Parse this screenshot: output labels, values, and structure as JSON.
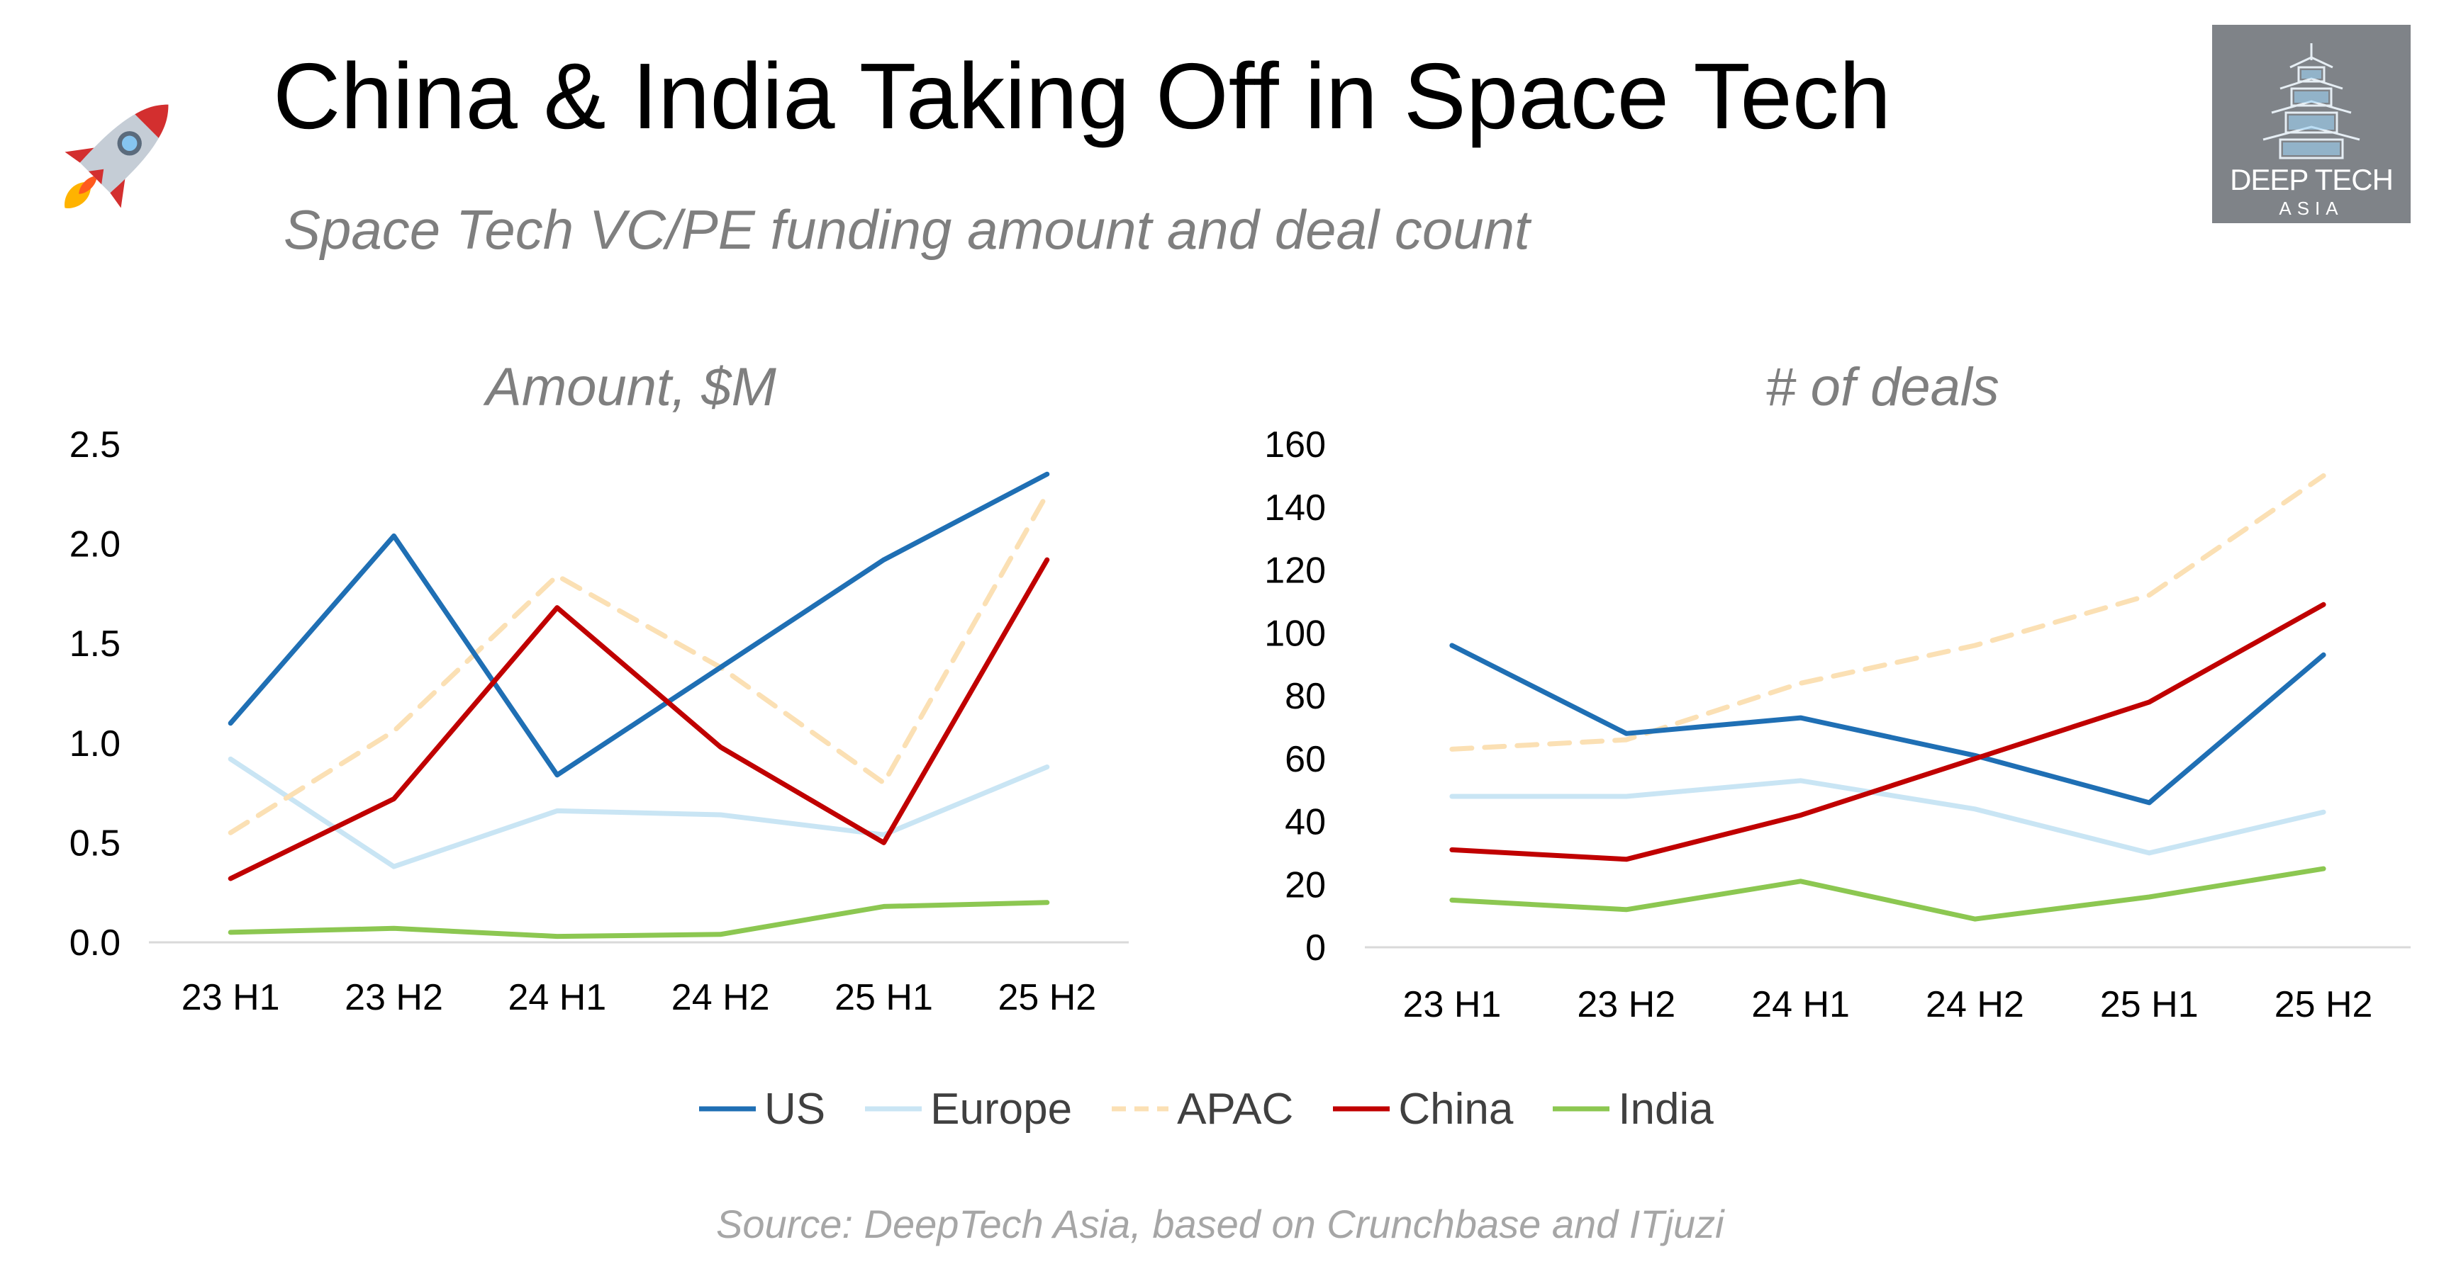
{
  "header": {
    "title": "China & India Taking Off in Space Tech",
    "subtitle": "Space Tech VC/PE funding amount and deal count"
  },
  "logo": {
    "line1": "DEEP TECH",
    "line2": "ASIA"
  },
  "source": "Source: DeepTech Asia, based on Crunchbase and ITjuzi",
  "series_styles": [
    {
      "name": "US",
      "color": "#1f6fb4",
      "dashed": false
    },
    {
      "name": "Europe",
      "color": "#c9e5f4",
      "dashed": false
    },
    {
      "name": "APAC",
      "color": "#fbe0b4",
      "dashed": true
    },
    {
      "name": "China",
      "color": "#c00000",
      "dashed": false
    },
    {
      "name": "India",
      "color": "#8cc751",
      "dashed": false
    }
  ],
  "legend": [
    "US",
    "Europe",
    "APAC",
    "China",
    "India"
  ],
  "chart_data": [
    {
      "type": "line",
      "title": "Amount, $M",
      "categories": [
        "23 H1",
        "23 H2",
        "24 H1",
        "24 H2",
        "25 H1",
        "25 H2"
      ],
      "ylim": [
        0,
        2.5
      ],
      "yticks": [
        "0.0",
        "0.5",
        "1.0",
        "1.5",
        "2.0",
        "2.5"
      ],
      "grid": false,
      "legend_position": "bottom",
      "series": [
        {
          "name": "US",
          "values": [
            1.1,
            2.04,
            0.84,
            1.38,
            1.92,
            2.35
          ]
        },
        {
          "name": "Europe",
          "values": [
            0.92,
            0.38,
            0.66,
            0.64,
            0.54,
            0.88
          ]
        },
        {
          "name": "APAC",
          "values": [
            0.55,
            1.06,
            1.84,
            1.38,
            0.8,
            2.25
          ]
        },
        {
          "name": "China",
          "values": [
            0.32,
            0.72,
            1.68,
            0.98,
            0.5,
            1.92
          ]
        },
        {
          "name": "India",
          "values": [
            0.05,
            0.07,
            0.03,
            0.04,
            0.18,
            0.2
          ]
        }
      ]
    },
    {
      "type": "line",
      "title": "# of deals",
      "categories": [
        "23 H1",
        "23 H2",
        "24 H1",
        "24 H2",
        "25 H1",
        "25 H2"
      ],
      "ylim": [
        0,
        160
      ],
      "yticks": [
        "0",
        "20",
        "40",
        "60",
        "80",
        "100",
        "120",
        "140",
        "160"
      ],
      "grid": false,
      "legend_position": "bottom",
      "series": [
        {
          "name": "US",
          "values": [
            96,
            68,
            73,
            61,
            46,
            93
          ]
        },
        {
          "name": "Europe",
          "values": [
            48,
            48,
            53,
            44,
            30,
            43
          ]
        },
        {
          "name": "APAC",
          "values": [
            63,
            66,
            84,
            96,
            112,
            150
          ]
        },
        {
          "name": "China",
          "values": [
            31,
            28,
            42,
            60,
            78,
            109
          ]
        },
        {
          "name": "India",
          "values": [
            15,
            12,
            21,
            9,
            16,
            25
          ]
        }
      ]
    }
  ]
}
